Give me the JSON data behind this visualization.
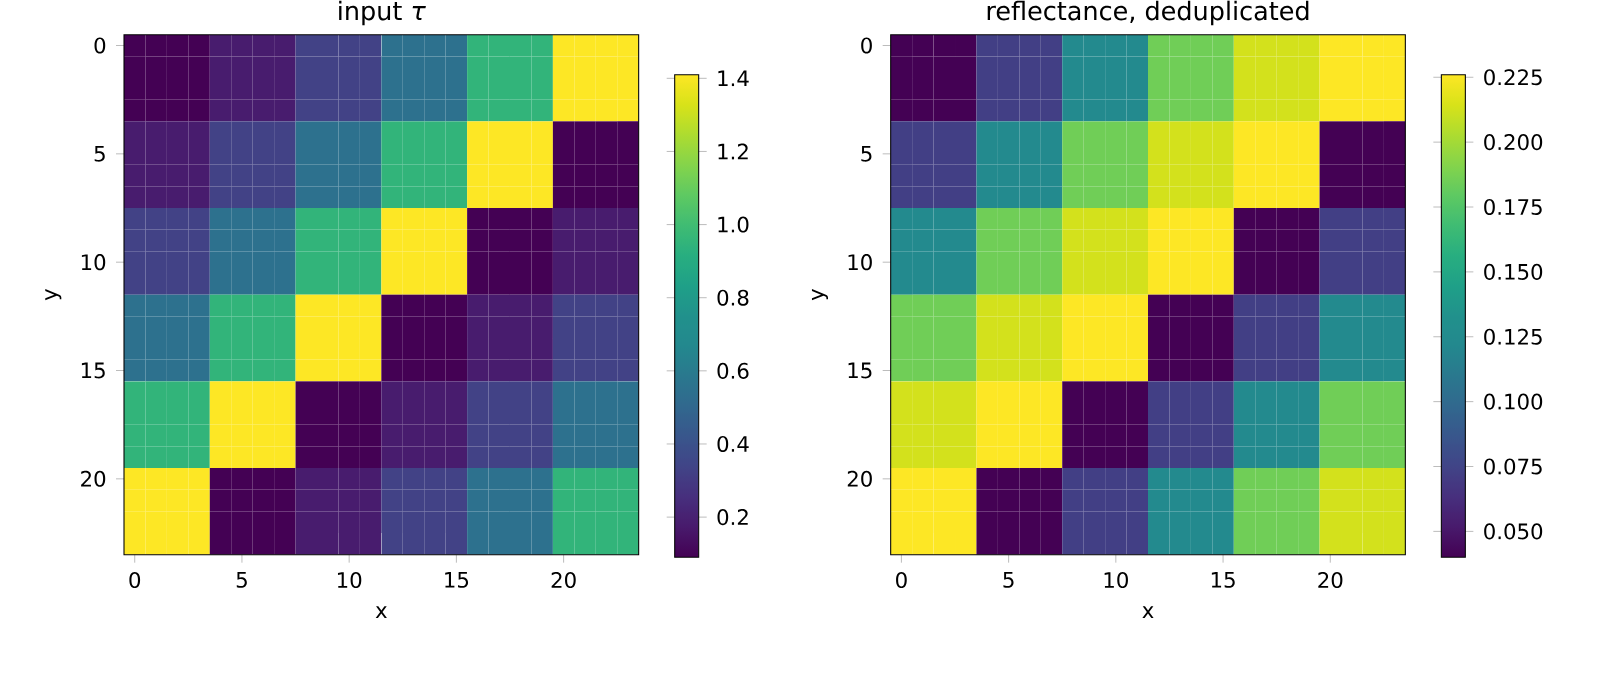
{
  "chart_data": [
    {
      "type": "heatmap",
      "title": "input *τ*",
      "xlabel": "x",
      "ylabel": "y",
      "categories": [
        "0",
        null,
        null,
        null,
        null,
        "5",
        null,
        null,
        null,
        null,
        "10",
        null,
        null,
        null,
        null,
        "15",
        null,
        null,
        null,
        null,
        "20",
        null,
        null,
        null
      ],
      "y_categories": [
        "0",
        null,
        null,
        null,
        null,
        "5",
        null,
        null,
        null,
        null,
        "10",
        null,
        null,
        null,
        null,
        "15",
        null,
        null,
        null,
        null,
        "20",
        null,
        null,
        null
      ],
      "cells": [
        [
          0.09,
          0.09,
          0.09,
          0.09,
          0.18,
          0.18,
          0.18,
          0.18,
          0.33,
          0.33,
          0.33,
          0.33,
          0.55,
          0.55,
          0.55,
          0.55,
          0.95,
          0.95,
          0.95,
          0.95,
          1.41,
          1.41,
          1.41,
          1.41
        ],
        [
          0.09,
          0.09,
          0.09,
          0.09,
          0.18,
          0.18,
          0.18,
          0.18,
          0.33,
          0.33,
          0.33,
          0.33,
          0.55,
          0.55,
          0.55,
          0.55,
          0.95,
          0.95,
          0.95,
          0.95,
          1.41,
          1.41,
          1.41,
          1.41
        ],
        [
          0.09,
          0.09,
          0.09,
          0.09,
          0.18,
          0.18,
          0.18,
          0.18,
          0.33,
          0.33,
          0.33,
          0.33,
          0.55,
          0.55,
          0.55,
          0.55,
          0.95,
          0.95,
          0.95,
          0.95,
          1.41,
          1.41,
          1.41,
          1.41
        ],
        [
          0.09,
          0.09,
          0.09,
          0.09,
          0.18,
          0.18,
          0.18,
          0.18,
          0.33,
          0.33,
          0.33,
          0.33,
          0.55,
          0.55,
          0.55,
          0.55,
          0.95,
          0.95,
          0.95,
          0.95,
          1.41,
          1.41,
          1.41,
          1.41
        ],
        [
          0.18,
          0.18,
          0.18,
          0.18,
          0.33,
          0.33,
          0.33,
          0.33,
          0.55,
          0.55,
          0.55,
          0.55,
          0.95,
          0.95,
          0.95,
          0.95,
          1.41,
          1.41,
          1.41,
          1.41,
          0.09,
          0.09,
          0.09,
          0.09
        ],
        [
          0.18,
          0.18,
          0.18,
          0.18,
          0.33,
          0.33,
          0.33,
          0.33,
          0.55,
          0.55,
          0.55,
          0.55,
          0.95,
          0.95,
          0.95,
          0.95,
          1.41,
          1.41,
          1.41,
          1.41,
          0.09,
          0.09,
          0.09,
          0.09
        ],
        [
          0.18,
          0.18,
          0.18,
          0.18,
          0.33,
          0.33,
          0.33,
          0.33,
          0.55,
          0.55,
          0.55,
          0.55,
          0.95,
          0.95,
          0.95,
          0.95,
          1.41,
          1.41,
          1.41,
          1.41,
          0.09,
          0.09,
          0.09,
          0.09
        ],
        [
          0.18,
          0.18,
          0.18,
          0.18,
          0.33,
          0.33,
          0.33,
          0.33,
          0.55,
          0.55,
          0.55,
          0.55,
          0.95,
          0.95,
          0.95,
          0.95,
          1.41,
          1.41,
          1.41,
          1.41,
          0.09,
          0.09,
          0.09,
          0.09
        ],
        [
          0.33,
          0.33,
          0.33,
          0.33,
          0.55,
          0.55,
          0.55,
          0.55,
          0.95,
          0.95,
          0.95,
          0.95,
          1.41,
          1.41,
          1.41,
          1.41,
          0.09,
          0.09,
          0.09,
          0.09,
          0.18,
          0.18,
          0.18,
          0.18
        ],
        [
          0.33,
          0.33,
          0.33,
          0.33,
          0.55,
          0.55,
          0.55,
          0.55,
          0.95,
          0.95,
          0.95,
          0.95,
          1.41,
          1.41,
          1.41,
          1.41,
          0.09,
          0.09,
          0.09,
          0.09,
          0.18,
          0.18,
          0.18,
          0.18
        ],
        [
          0.33,
          0.33,
          0.33,
          0.33,
          0.55,
          0.55,
          0.55,
          0.55,
          0.95,
          0.95,
          0.95,
          0.95,
          1.41,
          1.41,
          1.41,
          1.41,
          0.09,
          0.09,
          0.09,
          0.09,
          0.18,
          0.18,
          0.18,
          0.18
        ],
        [
          0.33,
          0.33,
          0.33,
          0.33,
          0.55,
          0.55,
          0.55,
          0.55,
          0.95,
          0.95,
          0.95,
          0.95,
          1.41,
          1.41,
          1.41,
          1.41,
          0.09,
          0.09,
          0.09,
          0.09,
          0.18,
          0.18,
          0.18,
          0.18
        ],
        [
          0.55,
          0.55,
          0.55,
          0.55,
          0.95,
          0.95,
          0.95,
          0.95,
          1.41,
          1.41,
          1.41,
          1.41,
          0.09,
          0.09,
          0.09,
          0.09,
          0.18,
          0.18,
          0.18,
          0.18,
          0.33,
          0.33,
          0.33,
          0.33
        ],
        [
          0.55,
          0.55,
          0.55,
          0.55,
          0.95,
          0.95,
          0.95,
          0.95,
          1.41,
          1.41,
          1.41,
          1.41,
          0.09,
          0.09,
          0.09,
          0.09,
          0.18,
          0.18,
          0.18,
          0.18,
          0.33,
          0.33,
          0.33,
          0.33
        ],
        [
          0.55,
          0.55,
          0.55,
          0.55,
          0.95,
          0.95,
          0.95,
          0.95,
          1.41,
          1.41,
          1.41,
          1.41,
          0.09,
          0.09,
          0.09,
          0.09,
          0.18,
          0.18,
          0.18,
          0.18,
          0.33,
          0.33,
          0.33,
          0.33
        ],
        [
          0.55,
          0.55,
          0.55,
          0.55,
          0.95,
          0.95,
          0.95,
          0.95,
          1.41,
          1.41,
          1.41,
          1.41,
          0.09,
          0.09,
          0.09,
          0.09,
          0.18,
          0.18,
          0.18,
          0.18,
          0.33,
          0.33,
          0.33,
          0.33
        ],
        [
          0.95,
          0.95,
          0.95,
          0.95,
          1.41,
          1.41,
          1.41,
          1.41,
          0.09,
          0.09,
          0.09,
          0.09,
          0.18,
          0.18,
          0.18,
          0.18,
          0.33,
          0.33,
          0.33,
          0.33,
          0.55,
          0.55,
          0.55,
          0.55
        ],
        [
          0.95,
          0.95,
          0.95,
          0.95,
          1.41,
          1.41,
          1.41,
          1.41,
          0.09,
          0.09,
          0.09,
          0.09,
          0.18,
          0.18,
          0.18,
          0.18,
          0.33,
          0.33,
          0.33,
          0.33,
          0.55,
          0.55,
          0.55,
          0.55
        ],
        [
          0.95,
          0.95,
          0.95,
          0.95,
          1.41,
          1.41,
          1.41,
          1.41,
          0.09,
          0.09,
          0.09,
          0.09,
          0.18,
          0.18,
          0.18,
          0.18,
          0.33,
          0.33,
          0.33,
          0.33,
          0.55,
          0.55,
          0.55,
          0.55
        ],
        [
          0.95,
          0.95,
          0.95,
          0.95,
          1.41,
          1.41,
          1.41,
          1.41,
          0.09,
          0.09,
          0.09,
          0.09,
          0.18,
          0.18,
          0.18,
          0.18,
          0.33,
          0.33,
          0.33,
          0.33,
          0.55,
          0.55,
          0.55,
          0.55
        ],
        [
          1.41,
          1.41,
          1.41,
          1.41,
          0.09,
          0.09,
          0.09,
          0.09,
          0.18,
          0.18,
          0.18,
          0.18,
          0.33,
          0.33,
          0.33,
          0.33,
          0.55,
          0.55,
          0.55,
          0.55,
          0.95,
          0.95,
          0.95,
          0.95
        ],
        [
          1.41,
          1.41,
          1.41,
          1.41,
          0.09,
          0.09,
          0.09,
          0.09,
          0.18,
          0.18,
          0.18,
          0.18,
          0.33,
          0.33,
          0.33,
          0.33,
          0.55,
          0.55,
          0.55,
          0.55,
          0.95,
          0.95,
          0.95,
          0.95
        ],
        [
          1.41,
          1.41,
          1.41,
          1.41,
          0.09,
          0.09,
          0.09,
          0.09,
          0.18,
          0.18,
          0.18,
          0.18,
          0.33,
          0.33,
          0.33,
          0.33,
          0.55,
          0.55,
          0.55,
          0.55,
          0.95,
          0.95,
          0.95,
          0.95
        ],
        [
          1.41,
          1.41,
          1.41,
          1.41,
          0.09,
          0.09,
          0.09,
          0.09,
          0.18,
          0.18,
          0.18,
          0.18,
          0.33,
          0.33,
          0.33,
          0.33,
          0.55,
          0.55,
          0.55,
          0.55,
          0.95,
          0.95,
          0.95,
          0.95
        ]
      ],
      "clim": [
        0.09,
        1.41
      ],
      "cticks": [
        0.2,
        0.4,
        0.6,
        0.8,
        {
          "value": 1.0,
          "label": "1.0"
        },
        1.2,
        1.4
      ]
    },
    {
      "type": "heatmap",
      "title": "reflectance, deduplicated",
      "xlabel": "x",
      "ylabel": "y",
      "categories": [
        "0",
        null,
        null,
        null,
        null,
        "5",
        null,
        null,
        null,
        null,
        "10",
        null,
        null,
        null,
        null,
        "15",
        null,
        null,
        null,
        null,
        "20",
        null,
        null,
        null
      ],
      "y_categories": [
        "0",
        null,
        null,
        null,
        null,
        "5",
        null,
        null,
        null,
        null,
        "10",
        null,
        null,
        null,
        null,
        "15",
        null,
        null,
        null,
        null,
        "20",
        null,
        null,
        null
      ],
      "cells": [
        [
          0.04,
          0.04,
          0.04,
          0.04,
          0.072,
          0.072,
          0.072,
          0.072,
          0.124,
          0.124,
          0.124,
          0.124,
          0.185,
          0.185,
          0.185,
          0.185,
          0.213,
          0.213,
          0.213,
          0.213,
          0.226,
          0.226,
          0.226,
          0.226
        ],
        [
          0.04,
          0.04,
          0.04,
          0.04,
          0.072,
          0.072,
          0.072,
          0.072,
          0.124,
          0.124,
          0.124,
          0.124,
          0.185,
          0.185,
          0.185,
          0.185,
          0.213,
          0.213,
          0.213,
          0.213,
          0.226,
          0.226,
          0.226,
          0.226
        ],
        [
          0.04,
          0.04,
          0.04,
          0.04,
          0.072,
          0.072,
          0.072,
          0.072,
          0.124,
          0.124,
          0.124,
          0.124,
          0.185,
          0.185,
          0.185,
          0.185,
          0.213,
          0.213,
          0.213,
          0.213,
          0.226,
          0.226,
          0.226,
          0.226
        ],
        [
          0.04,
          0.04,
          0.04,
          0.04,
          0.072,
          0.072,
          0.072,
          0.072,
          0.124,
          0.124,
          0.124,
          0.124,
          0.185,
          0.185,
          0.185,
          0.185,
          0.213,
          0.213,
          0.213,
          0.213,
          0.226,
          0.226,
          0.226,
          0.226
        ],
        [
          0.072,
          0.072,
          0.072,
          0.072,
          0.124,
          0.124,
          0.124,
          0.124,
          0.185,
          0.185,
          0.185,
          0.185,
          0.213,
          0.213,
          0.213,
          0.213,
          0.226,
          0.226,
          0.226,
          0.226,
          0.04,
          0.04,
          0.04,
          0.04
        ],
        [
          0.072,
          0.072,
          0.072,
          0.072,
          0.124,
          0.124,
          0.124,
          0.124,
          0.185,
          0.185,
          0.185,
          0.185,
          0.213,
          0.213,
          0.213,
          0.213,
          0.226,
          0.226,
          0.226,
          0.226,
          0.04,
          0.04,
          0.04,
          0.04
        ],
        [
          0.072,
          0.072,
          0.072,
          0.072,
          0.124,
          0.124,
          0.124,
          0.124,
          0.185,
          0.185,
          0.185,
          0.185,
          0.213,
          0.213,
          0.213,
          0.213,
          0.226,
          0.226,
          0.226,
          0.226,
          0.04,
          0.04,
          0.04,
          0.04
        ],
        [
          0.072,
          0.072,
          0.072,
          0.072,
          0.124,
          0.124,
          0.124,
          0.124,
          0.185,
          0.185,
          0.185,
          0.185,
          0.213,
          0.213,
          0.213,
          0.213,
          0.226,
          0.226,
          0.226,
          0.226,
          0.04,
          0.04,
          0.04,
          0.04
        ],
        [
          0.124,
          0.124,
          0.124,
          0.124,
          0.185,
          0.185,
          0.185,
          0.185,
          0.213,
          0.213,
          0.213,
          0.213,
          0.226,
          0.226,
          0.226,
          0.226,
          0.04,
          0.04,
          0.04,
          0.04,
          0.072,
          0.072,
          0.072,
          0.072
        ],
        [
          0.124,
          0.124,
          0.124,
          0.124,
          0.185,
          0.185,
          0.185,
          0.185,
          0.213,
          0.213,
          0.213,
          0.213,
          0.226,
          0.226,
          0.226,
          0.226,
          0.04,
          0.04,
          0.04,
          0.04,
          0.072,
          0.072,
          0.072,
          0.072
        ],
        [
          0.124,
          0.124,
          0.124,
          0.124,
          0.185,
          0.185,
          0.185,
          0.185,
          0.213,
          0.213,
          0.213,
          0.213,
          0.226,
          0.226,
          0.226,
          0.226,
          0.04,
          0.04,
          0.04,
          0.04,
          0.072,
          0.072,
          0.072,
          0.072
        ],
        [
          0.124,
          0.124,
          0.124,
          0.124,
          0.185,
          0.185,
          0.185,
          0.185,
          0.213,
          0.213,
          0.213,
          0.213,
          0.226,
          0.226,
          0.226,
          0.226,
          0.04,
          0.04,
          0.04,
          0.04,
          0.072,
          0.072,
          0.072,
          0.072
        ],
        [
          0.185,
          0.185,
          0.185,
          0.185,
          0.213,
          0.213,
          0.213,
          0.213,
          0.226,
          0.226,
          0.226,
          0.226,
          0.04,
          0.04,
          0.04,
          0.04,
          0.072,
          0.072,
          0.072,
          0.072,
          0.124,
          0.124,
          0.124,
          0.124
        ],
        [
          0.185,
          0.185,
          0.185,
          0.185,
          0.213,
          0.213,
          0.213,
          0.213,
          0.226,
          0.226,
          0.226,
          0.226,
          0.04,
          0.04,
          0.04,
          0.04,
          0.072,
          0.072,
          0.072,
          0.072,
          0.124,
          0.124,
          0.124,
          0.124
        ],
        [
          0.185,
          0.185,
          0.185,
          0.185,
          0.213,
          0.213,
          0.213,
          0.213,
          0.226,
          0.226,
          0.226,
          0.226,
          0.04,
          0.04,
          0.04,
          0.04,
          0.072,
          0.072,
          0.072,
          0.072,
          0.124,
          0.124,
          0.124,
          0.124
        ],
        [
          0.185,
          0.185,
          0.185,
          0.185,
          0.213,
          0.213,
          0.213,
          0.213,
          0.226,
          0.226,
          0.226,
          0.226,
          0.04,
          0.04,
          0.04,
          0.04,
          0.072,
          0.072,
          0.072,
          0.072,
          0.124,
          0.124,
          0.124,
          0.124
        ],
        [
          0.213,
          0.213,
          0.213,
          0.213,
          0.226,
          0.226,
          0.226,
          0.226,
          0.04,
          0.04,
          0.04,
          0.04,
          0.072,
          0.072,
          0.072,
          0.072,
          0.124,
          0.124,
          0.124,
          0.124,
          0.185,
          0.185,
          0.185,
          0.185
        ],
        [
          0.213,
          0.213,
          0.213,
          0.213,
          0.226,
          0.226,
          0.226,
          0.226,
          0.04,
          0.04,
          0.04,
          0.04,
          0.072,
          0.072,
          0.072,
          0.072,
          0.124,
          0.124,
          0.124,
          0.124,
          0.185,
          0.185,
          0.185,
          0.185
        ],
        [
          0.213,
          0.213,
          0.213,
          0.213,
          0.226,
          0.226,
          0.226,
          0.226,
          0.04,
          0.04,
          0.04,
          0.04,
          0.072,
          0.072,
          0.072,
          0.072,
          0.124,
          0.124,
          0.124,
          0.124,
          0.185,
          0.185,
          0.185,
          0.185
        ],
        [
          0.213,
          0.213,
          0.213,
          0.213,
          0.226,
          0.226,
          0.226,
          0.226,
          0.04,
          0.04,
          0.04,
          0.04,
          0.072,
          0.072,
          0.072,
          0.072,
          0.124,
          0.124,
          0.124,
          0.124,
          0.185,
          0.185,
          0.185,
          0.185
        ],
        [
          0.226,
          0.226,
          0.226,
          0.226,
          0.04,
          0.04,
          0.04,
          0.04,
          0.072,
          0.072,
          0.072,
          0.072,
          0.124,
          0.124,
          0.124,
          0.124,
          0.185,
          0.185,
          0.185,
          0.185,
          0.213,
          0.213,
          0.213,
          0.213
        ],
        [
          0.226,
          0.226,
          0.226,
          0.226,
          0.04,
          0.04,
          0.04,
          0.04,
          0.072,
          0.072,
          0.072,
          0.072,
          0.124,
          0.124,
          0.124,
          0.124,
          0.185,
          0.185,
          0.185,
          0.185,
          0.213,
          0.213,
          0.213,
          0.213
        ],
        [
          0.226,
          0.226,
          0.226,
          0.226,
          0.04,
          0.04,
          0.04,
          0.04,
          0.072,
          0.072,
          0.072,
          0.072,
          0.124,
          0.124,
          0.124,
          0.124,
          0.185,
          0.185,
          0.185,
          0.185,
          0.213,
          0.213,
          0.213,
          0.213
        ],
        [
          0.226,
          0.226,
          0.226,
          0.226,
          0.04,
          0.04,
          0.04,
          0.04,
          0.072,
          0.072,
          0.072,
          0.072,
          0.124,
          0.124,
          0.124,
          0.124,
          0.185,
          0.185,
          0.185,
          0.185,
          0.213,
          0.213,
          0.213,
          0.213
        ]
      ],
      "clim": [
        0.04,
        0.226
      ],
      "cticks": [
        {
          "value": 0.05,
          "label": "0.050"
        },
        {
          "value": 0.075,
          "label": "0.075"
        },
        {
          "value": 0.1,
          "label": "0.100"
        },
        {
          "value": 0.125,
          "label": "0.125"
        },
        {
          "value": 0.15,
          "label": "0.150"
        },
        {
          "value": 0.175,
          "label": "0.175"
        },
        {
          "value": 0.2,
          "label": "0.200"
        },
        {
          "value": 0.225,
          "label": "0.225"
        }
      ]
    }
  ]
}
